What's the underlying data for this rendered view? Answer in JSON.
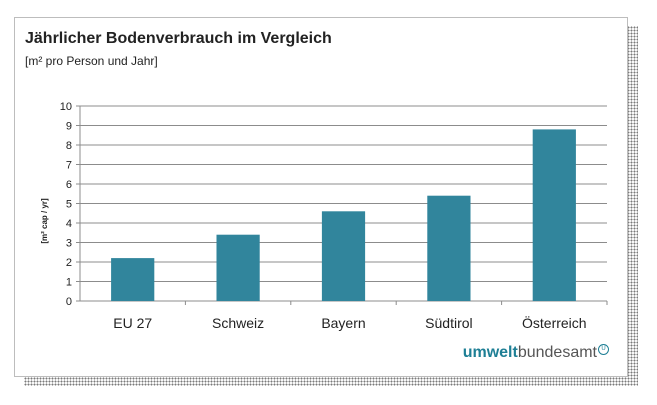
{
  "chart_data": {
    "type": "bar",
    "title": "Jährlicher Bodenverbrauch im Vergleich",
    "subtitle": "[m² pro Person und Jahr]",
    "ylabel": "[m² cap / yr]",
    "xlabel": "",
    "categories": [
      "EU 27",
      "Schweiz",
      "Bayern",
      "Südtirol",
      "Österreich"
    ],
    "values": [
      2.2,
      3.4,
      4.6,
      5.4,
      8.8
    ],
    "ylim": [
      0,
      10
    ],
    "yticks": [
      "0",
      "1",
      "2",
      "3",
      "4",
      "5",
      "6",
      "7",
      "8",
      "9",
      "10"
    ],
    "grid": true,
    "legend": "none",
    "bar_color": "#31859c"
  },
  "branding": {
    "part1": "umwelt",
    "part2": "bundesamt",
    "mark": "U"
  }
}
